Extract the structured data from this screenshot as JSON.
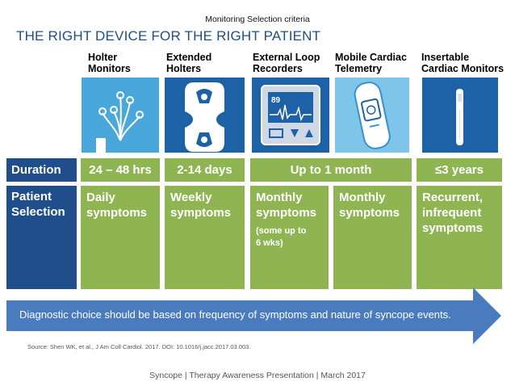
{
  "header": {
    "subtitle": "Monitoring Selection criteria",
    "title": "THE RIGHT DEVICE FOR THE RIGHT PATIENT"
  },
  "devices": [
    {
      "label": "Holter\nMonitors",
      "icon": "holter-icon"
    },
    {
      "label": "Extended\nHolters",
      "icon": "extended-holter-icon"
    },
    {
      "label": "External Loop\nRecorders",
      "icon": "external-loop-recorder-icon"
    },
    {
      "label": "Mobile Cardiac\nTelemetry",
      "icon": "mobile-cardiac-telemetry-icon"
    },
    {
      "label": "Insertable\nCardiac Monitors",
      "icon": "insertable-cardiac-monitor-icon"
    }
  ],
  "recorder_screen_value": "89",
  "rows": {
    "duration_header": "Duration",
    "duration": [
      "24 – 48 hrs",
      "2-14 days",
      "Up to 1 month",
      "≤3 years"
    ],
    "patient_header": "Patient\nSelection",
    "patient": [
      {
        "text": "Daily\nsymptoms",
        "note": ""
      },
      {
        "text": "Weekly\nsymptoms",
        "note": ""
      },
      {
        "text": "Monthly\nsymptoms",
        "note": "(some up to\n6 wks)"
      },
      {
        "text": "Monthly\nsymptoms",
        "note": ""
      },
      {
        "text": "Recurrent,\ninfrequent\nsymptoms",
        "note": ""
      }
    ]
  },
  "arrow_text": "Diagnostic choice should be based on frequency of symptoms and nature of syncope events.",
  "source": "Source: Shen WK, et al., J Am Coll Cardiol. 2017. DOI: 10.1016/j.jacc.2017.03.003.",
  "footer": "Syncope  |  Therapy Awareness Presentation  |  March 2017",
  "colors": {
    "navy": "#1f4e8a",
    "green": "#8fb553",
    "tile_dark": "#1d61a6",
    "tile_mid": "#3a8fd0",
    "tile_light": "#7ec5ea",
    "arrow": "#4a7bbf"
  }
}
